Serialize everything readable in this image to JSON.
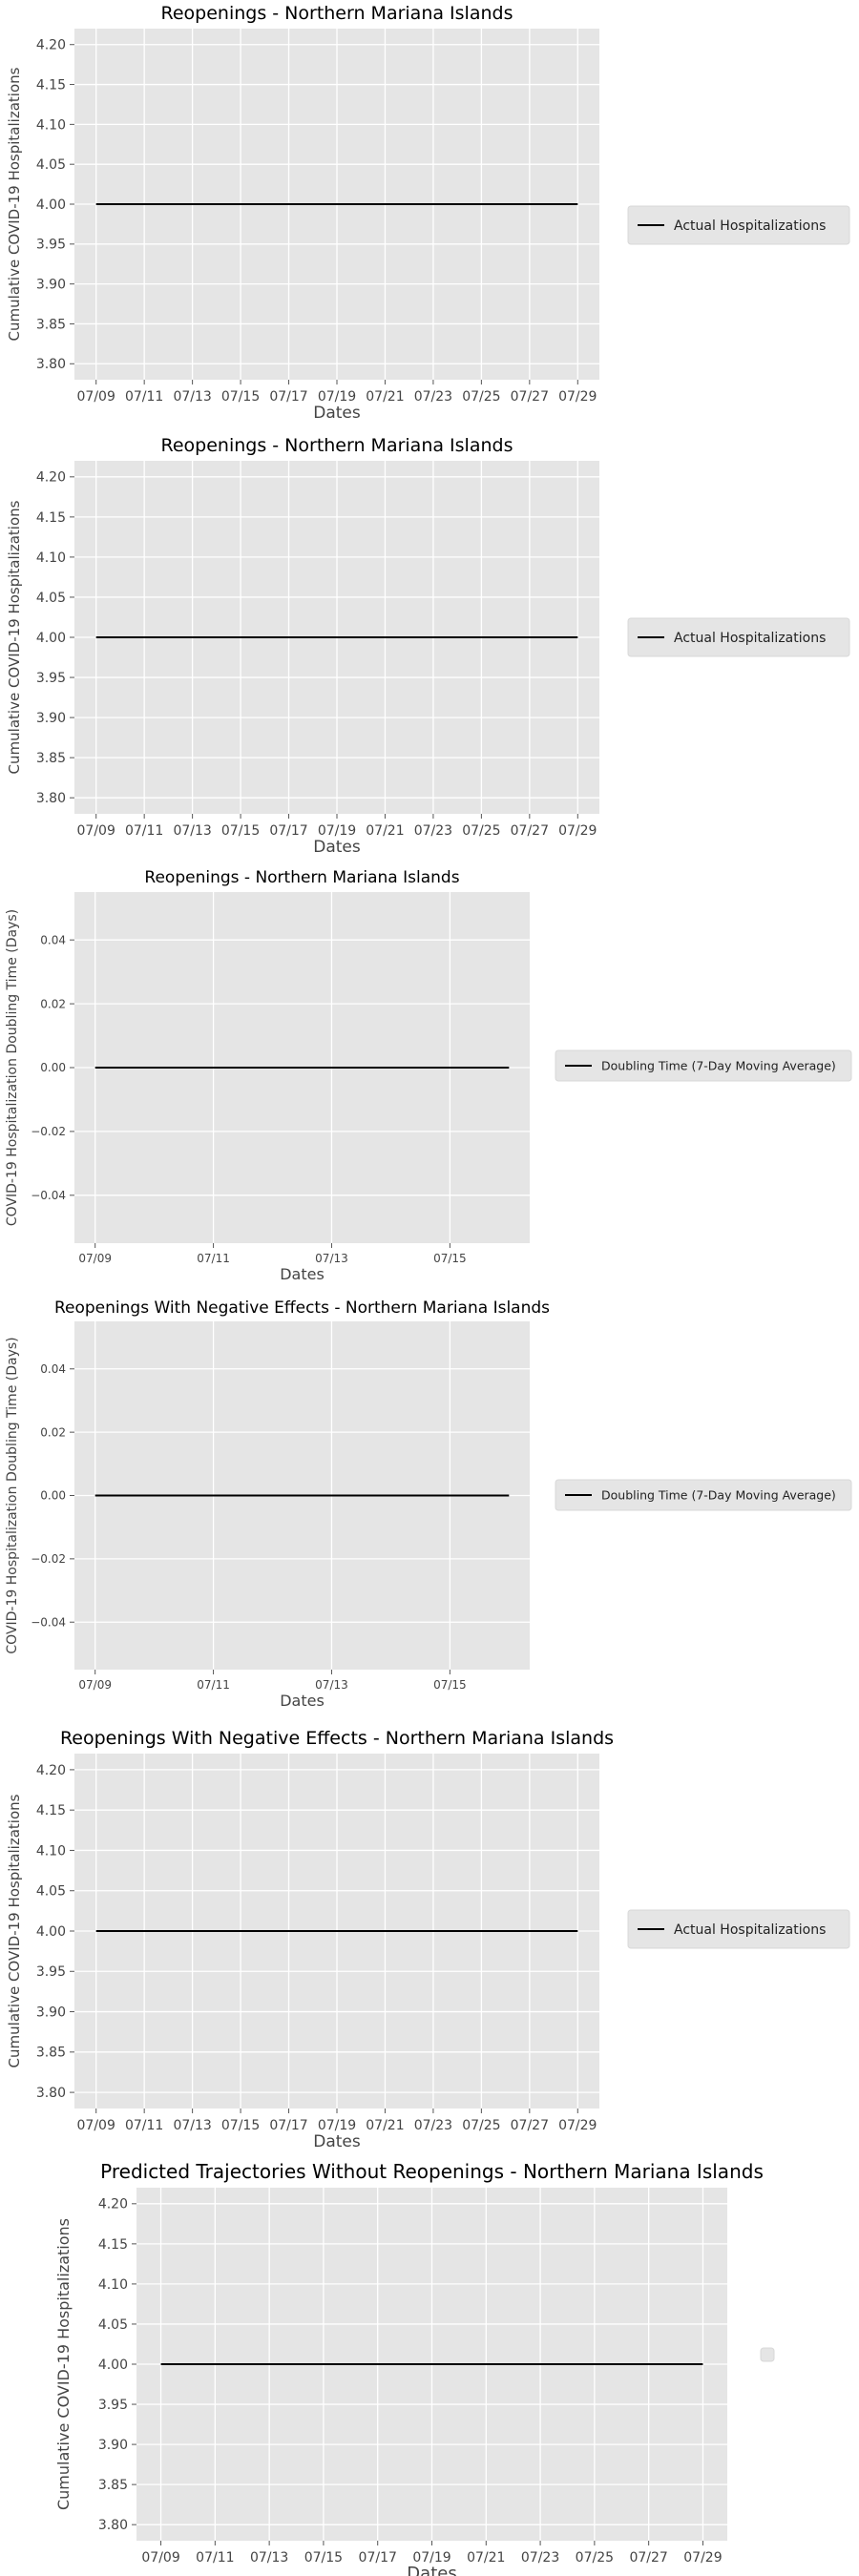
{
  "chart_data": [
    {
      "type": "line",
      "title": "Reopenings - Northern Mariana Islands",
      "xlabel": "Dates",
      "ylabel": "Cumulative COVID-19 Hospitalizations",
      "x_ticks": [
        "07/09",
        "07/11",
        "07/13",
        "07/15",
        "07/17",
        "07/19",
        "07/21",
        "07/23",
        "07/25",
        "07/27",
        "07/29"
      ],
      "y_ticks": [
        "3.80",
        "3.85",
        "3.90",
        "3.95",
        "4.00",
        "4.05",
        "4.10",
        "4.15",
        "4.20"
      ],
      "xlim": [
        -0.9,
        20.9
      ],
      "ylim": [
        3.78,
        4.22
      ],
      "grid": true,
      "legend": "right",
      "series": [
        {
          "name": "Actual Hospitalizations",
          "color": "#000000",
          "x": [
            "07/09",
            "07/29"
          ],
          "x_index": [
            0,
            20
          ],
          "y": [
            4.0,
            4.0
          ]
        }
      ]
    },
    {
      "type": "line",
      "title": "Reopenings - Northern Mariana Islands",
      "xlabel": "Dates",
      "ylabel": "Cumulative COVID-19 Hospitalizations",
      "x_ticks": [
        "07/09",
        "07/11",
        "07/13",
        "07/15",
        "07/17",
        "07/19",
        "07/21",
        "07/23",
        "07/25",
        "07/27",
        "07/29"
      ],
      "y_ticks": [
        "3.80",
        "3.85",
        "3.90",
        "3.95",
        "4.00",
        "4.05",
        "4.10",
        "4.15",
        "4.20"
      ],
      "xlim": [
        -0.9,
        20.9
      ],
      "ylim": [
        3.78,
        4.22
      ],
      "grid": true,
      "legend": "right",
      "series": [
        {
          "name": "Actual Hospitalizations",
          "color": "#000000",
          "x": [
            "07/09",
            "07/29"
          ],
          "x_index": [
            0,
            20
          ],
          "y": [
            4.0,
            4.0
          ]
        }
      ]
    },
    {
      "type": "line",
      "title": "Reopenings - Northern Mariana Islands",
      "xlabel": "Dates",
      "ylabel": "COVID-19 Hospitalization Doubling Time (Days)",
      "x_ticks": [
        "07/09",
        "07/11",
        "07/13",
        "07/15"
      ],
      "x_tick_index": [
        0,
        2,
        4,
        6
      ],
      "y_ticks": [
        "−0.04",
        "−0.02",
        "0.00",
        "0.02",
        "0.04"
      ],
      "y_tick_values": [
        -0.04,
        -0.02,
        0,
        0.02,
        0.04
      ],
      "xlim": [
        -0.35,
        7.35
      ],
      "ylim": [
        -0.055,
        0.055
      ],
      "grid": true,
      "legend": "right",
      "series": [
        {
          "name": "Doubling Time (7-Day Moving Average)",
          "color": "#000000",
          "x_index": [
            0,
            7
          ],
          "y": [
            0,
            0
          ]
        }
      ]
    },
    {
      "type": "line",
      "title": "Reopenings With Negative Effects - Northern Mariana Islands",
      "xlabel": "Dates",
      "ylabel": "COVID-19 Hospitalization Doubling Time (Days)",
      "x_ticks": [
        "07/09",
        "07/11",
        "07/13",
        "07/15"
      ],
      "x_tick_index": [
        0,
        2,
        4,
        6
      ],
      "y_ticks": [
        "−0.04",
        "−0.02",
        "0.00",
        "0.02",
        "0.04"
      ],
      "y_tick_values": [
        -0.04,
        -0.02,
        0,
        0.02,
        0.04
      ],
      "xlim": [
        -0.35,
        7.35
      ],
      "ylim": [
        -0.055,
        0.055
      ],
      "grid": true,
      "legend": "right",
      "series": [
        {
          "name": "Doubling Time (7-Day Moving Average)",
          "color": "#000000",
          "x_index": [
            0,
            7
          ],
          "y": [
            0,
            0
          ]
        }
      ]
    },
    {
      "type": "line",
      "title": "Reopenings With Negative Effects - Northern Mariana Islands",
      "xlabel": "Dates",
      "ylabel": "Cumulative COVID-19 Hospitalizations",
      "x_ticks": [
        "07/09",
        "07/11",
        "07/13",
        "07/15",
        "07/17",
        "07/19",
        "07/21",
        "07/23",
        "07/25",
        "07/27",
        "07/29"
      ],
      "y_ticks": [
        "3.80",
        "3.85",
        "3.90",
        "3.95",
        "4.00",
        "4.05",
        "4.10",
        "4.15",
        "4.20"
      ],
      "xlim": [
        -0.9,
        20.9
      ],
      "ylim": [
        3.78,
        4.22
      ],
      "grid": true,
      "legend": "right",
      "series": [
        {
          "name": "Actual Hospitalizations",
          "color": "#000000",
          "x": [
            "07/09",
            "07/29"
          ],
          "x_index": [
            0,
            20
          ],
          "y": [
            4.0,
            4.0
          ]
        }
      ]
    },
    {
      "type": "line",
      "title": "Predicted Trajectories Without Reopenings - Northern Mariana Islands",
      "xlabel": "Dates",
      "ylabel": "Cumulative COVID-19 Hospitalizations",
      "x_ticks": [
        "07/09",
        "07/11",
        "07/13",
        "07/15",
        "07/17",
        "07/19",
        "07/21",
        "07/23",
        "07/25",
        "07/27",
        "07/29"
      ],
      "y_ticks": [
        "3.80",
        "3.85",
        "3.90",
        "3.95",
        "4.00",
        "4.05",
        "4.10",
        "4.15",
        "4.20"
      ],
      "xlim": [
        -0.9,
        20.9
      ],
      "ylim": [
        3.78,
        4.22
      ],
      "grid": true,
      "legend": "right",
      "series": [
        {
          "name": "",
          "color": "#000000",
          "x": [
            "07/09",
            "07/29"
          ],
          "x_index": [
            0,
            20
          ],
          "y": [
            4.0,
            4.0
          ]
        }
      ]
    }
  ]
}
